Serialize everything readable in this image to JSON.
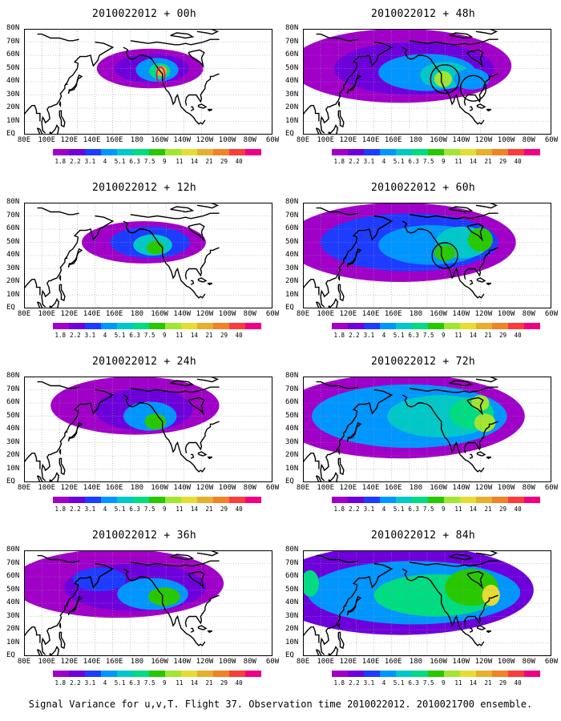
{
  "panels": [
    {
      "title": "2010022012 + 00h",
      "col": 0,
      "row": 0,
      "intensity": 0
    },
    {
      "title": "2010022012 + 48h",
      "col": 1,
      "row": 0,
      "intensity": 4
    },
    {
      "title": "2010022012 + 12h",
      "col": 0,
      "row": 1,
      "intensity": 1
    },
    {
      "title": "2010022012 + 60h",
      "col": 1,
      "row": 1,
      "intensity": 5
    },
    {
      "title": "2010022012 + 24h",
      "col": 0,
      "row": 2,
      "intensity": 2
    },
    {
      "title": "2010022012 + 72h",
      "col": 1,
      "row": 2,
      "intensity": 6
    },
    {
      "title": "2010022012 + 36h",
      "col": 0,
      "row": 3,
      "intensity": 3
    },
    {
      "title": "2010022012 + 84h",
      "col": 1,
      "row": 3,
      "intensity": 7
    }
  ],
  "lat_labels": [
    "80N",
    "70N",
    "60N",
    "50N",
    "40N",
    "30N",
    "20N",
    "10N",
    "EQ"
  ],
  "lon_labels": [
    "80E",
    "100E",
    "120E",
    "140E",
    "160E",
    "180",
    "160W",
    "140W",
    "120W",
    "100W",
    "80W",
    "60W"
  ],
  "colorbar": {
    "labels": [
      "1.8",
      "2.2",
      "3.1",
      "4",
      "5.1",
      "6.3",
      "7.5",
      "9",
      "11",
      "14",
      "21",
      "29",
      "40"
    ],
    "colors": [
      "#a000c8",
      "#6e00dc",
      "#1e3cff",
      "#0096ff",
      "#00c8c8",
      "#00dc82",
      "#28c800",
      "#a0e632",
      "#e6dc32",
      "#e6af2d",
      "#f08228",
      "#fa3c3c",
      "#f00082"
    ]
  },
  "caption": "Signal Variance for u,v,T. Flight 37. Observation time 2010022012. 2010021700 ensemble."
}
